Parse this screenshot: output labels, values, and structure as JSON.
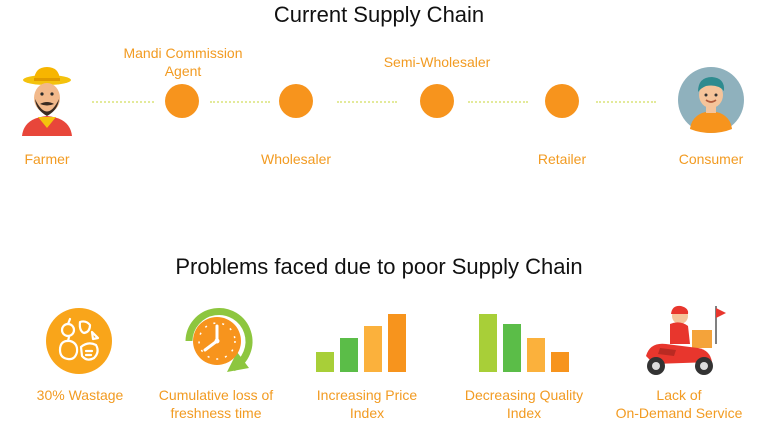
{
  "supply_chain": {
    "title": "Current Supply Chain",
    "stages": [
      {
        "label": "Farmer",
        "icon": "farmer-icon"
      },
      {
        "label": "Mandi Commission Agent",
        "line1": "Mandi Commission",
        "line2": "Agent"
      },
      {
        "label": "Wholesaler"
      },
      {
        "label": "Semi-Wholesaler"
      },
      {
        "label": "Retailer"
      },
      {
        "label": "Consumer",
        "icon": "consumer-icon"
      }
    ]
  },
  "problems": {
    "title": "Problems faced due to poor Supply Chain",
    "items": [
      {
        "line1": "30% Wastage",
        "line2": "",
        "icon": "wastage-produce-icon"
      },
      {
        "line1": "Cumulative loss of",
        "line2": "freshness time",
        "icon": "freshness-clock-icon"
      },
      {
        "line1": "Increasing Price",
        "line2": "Index",
        "icon": "increasing-bars-icon"
      },
      {
        "line1": "Decreasing Quality",
        "line2": "Index",
        "icon": "decreasing-bars-icon"
      },
      {
        "line1": "Lack of",
        "line2": "On-Demand Service",
        "icon": "delivery-scooter-icon"
      }
    ]
  },
  "colors": {
    "accent_orange": "#f7941d",
    "label_orange": "#f29b22",
    "connector_dots": "#e3ea9a",
    "bar_green_light": "#a8cf38",
    "bar_green": "#5bbd48",
    "bar_orange_light": "#fbb13c",
    "bar_orange": "#f7941d",
    "clock_green": "#8dc63f",
    "scooter_red": "#e8362d"
  }
}
